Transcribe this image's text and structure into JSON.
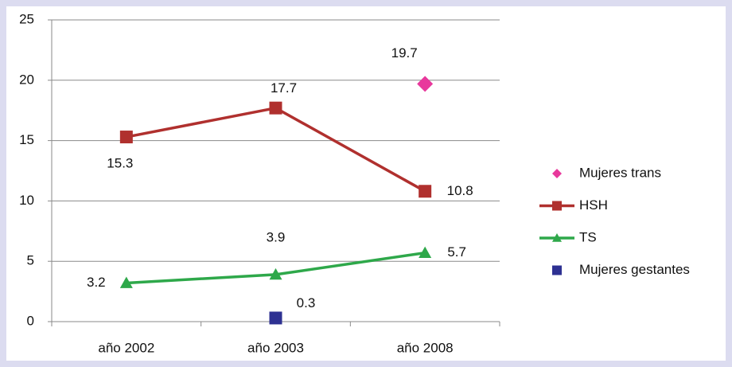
{
  "chart_data": {
    "type": "line",
    "categories": [
      "año 2002",
      "año 2003",
      "año 2008"
    ],
    "series": [
      {
        "name": "Mujeres trans",
        "color": "#e8389c",
        "marker": "diamond",
        "values": [
          null,
          null,
          19.7
        ]
      },
      {
        "name": "HSH",
        "color": "#b0302e",
        "marker": "square",
        "values": [
          15.3,
          17.7,
          10.8
        ]
      },
      {
        "name": "TS",
        "color": "#2ea84a",
        "marker": "triangle",
        "values": [
          3.2,
          3.9,
          5.7
        ]
      },
      {
        "name": "Mujeres gestantes",
        "color": "#2e3192",
        "marker": "square",
        "values": [
          null,
          0.3,
          null
        ]
      }
    ],
    "ylim": [
      0,
      25
    ],
    "yticks": [
      0,
      5,
      10,
      15,
      20,
      25
    ],
    "grid": true,
    "legend": "right"
  }
}
